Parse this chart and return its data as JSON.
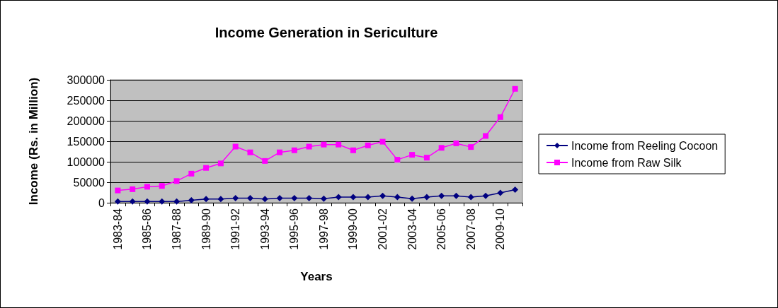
{
  "chart_data": {
    "type": "line",
    "title": "Income Generation in Sericulture",
    "xlabel": "Years",
    "ylabel": "Income (Rs. in Million)",
    "categories": [
      "1983-84",
      null,
      "1985-86",
      null,
      "1987-88",
      null,
      "1989-90",
      null,
      "1991-92",
      null,
      "1993-94",
      null,
      "1995-96",
      null,
      "1997-98",
      null,
      "1999-00",
      null,
      "2001-02",
      null,
      "2003-04",
      null,
      "2005-06",
      null,
      "2007-08",
      null,
      "2009-10",
      null
    ],
    "series": [
      {
        "name": "Income from Reeling Cocoon",
        "color": "#000080",
        "marker": "diamond",
        "values": [
          3000,
          3000,
          3000,
          3000,
          3000,
          6000,
          9000,
          9000,
          11000,
          11000,
          9000,
          11000,
          11000,
          11000,
          10000,
          14000,
          14000,
          14000,
          17000,
          14000,
          10000,
          14000,
          17000,
          17000,
          14000,
          17000,
          24000,
          32000
        ]
      },
      {
        "name": "Income from Raw Silk",
        "color": "#ff00ff",
        "marker": "square",
        "values": [
          30000,
          33000,
          39000,
          41000,
          53000,
          71000,
          85000,
          96000,
          137000,
          123000,
          102000,
          123000,
          128000,
          137000,
          142000,
          142000,
          128000,
          140000,
          149000,
          105000,
          117000,
          110000,
          134000,
          145000,
          136000,
          163000,
          209000,
          278000
        ]
      }
    ],
    "ylim": [
      0,
      300000
    ],
    "yticks": [
      0,
      50000,
      100000,
      150000,
      200000,
      250000,
      300000
    ],
    "grid": "y",
    "legend": "right",
    "line_style": "solid"
  }
}
